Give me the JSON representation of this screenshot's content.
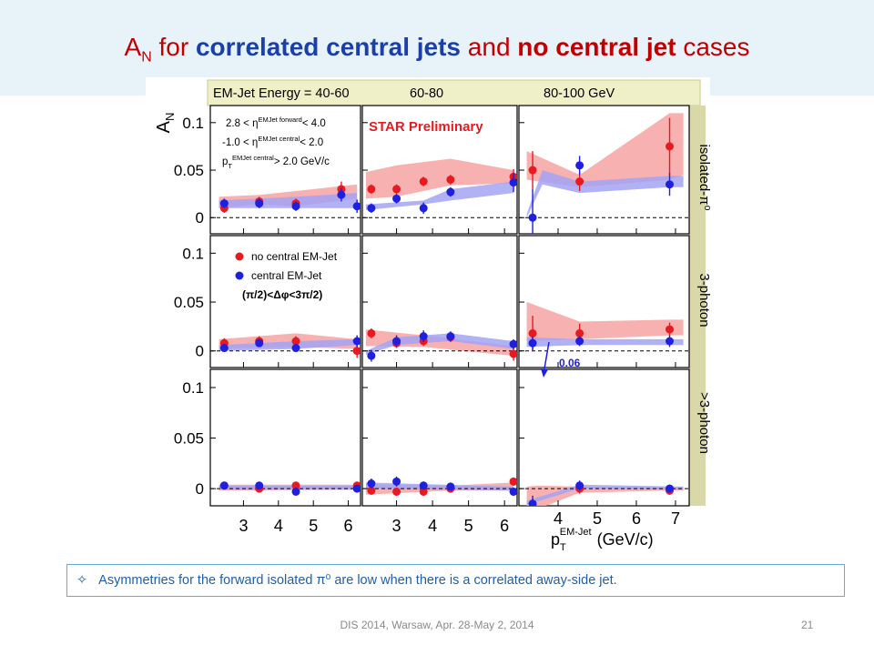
{
  "slide": {
    "title_prefix": "A",
    "title_sub": "N",
    "title_for": " for ",
    "title_correlated": "correlated central jets",
    "title_and": " and ",
    "title_no_central": "no central jet",
    "title_cases": " cases",
    "note_icon": "diamond-outline-icon",
    "note_text": "Asymmetries for the forward isolated π⁰ are low when there is a correlated away-side jet.",
    "footer": "DIS 2014, Warsaw, Apr. 28-May 2, 2014",
    "page_number": "21"
  },
  "chart_data": {
    "type": "scatter",
    "header_labels": [
      "EM-Jet Energy = 40-60",
      "60-80",
      "80-100 GeV"
    ],
    "row_labels": [
      "isolated-π⁰",
      "3-photon",
      ">3-photon"
    ],
    "y_label": "A",
    "y_label_sub": "N",
    "y_ticks": [
      0,
      0.05,
      0.1
    ],
    "y_tick_labels": [
      "0",
      "0.05",
      "0.1"
    ],
    "ylim": [
      -0.017,
      0.118
    ],
    "x_ticks_by_column": [
      [
        3,
        4,
        5,
        6
      ],
      [
        3,
        4,
        5,
        6
      ],
      [
        4,
        5,
        6,
        7
      ]
    ],
    "xlims_by_column": [
      [
        2.05,
        6.35
      ],
      [
        2.05,
        6.35
      ],
      [
        3.0,
        7.35
      ]
    ],
    "x_label": "p",
    "x_label_sub": "T",
    "x_label_sup": "EM-Jet",
    "x_label_unit": "(GeV/c)",
    "preliminary_label": "STAR Preliminary",
    "cuts": {
      "line1_left": "2.8 < η",
      "line1_sup": "EMJet forward",
      "line1_right": "< 4.0",
      "line2_left": "-1.0 < η",
      "line2_sup": "EMJet central",
      "line2_right": "< 2.0",
      "line3_left": "p",
      "line3_sub": "T",
      "line3_sup": "EMJet central",
      "line3_right": "> 2.0 GeV/c"
    },
    "legend_no_central": "no central EM-Jet",
    "legend_central": "central EM-Jet",
    "legend_central_cut": "(π/2)<Δφ<3π/2)",
    "arrow_annotation": "0.06",
    "colors": {
      "no_central": "#e8191f",
      "central": "#1f1fe0",
      "no_central_band": "#f7a3a3",
      "central_band": "#a3a3f5",
      "header_bg": "#f0f0c8",
      "side_bg": "#d8d8a8"
    },
    "series": [
      {
        "name": "no central EM-Jet",
        "panels": [
          {
            "row": 0,
            "col": 0,
            "x": [
              2.45,
              3.45,
              4.5,
              5.8
            ],
            "y": [
              0.01,
              0.017,
              0.015,
              0.03
            ],
            "err": [
              0.005,
              0.005,
              0.005,
              0.008
            ]
          },
          {
            "row": 0,
            "col": 1,
            "x": [
              2.3,
              3.0,
              3.75,
              4.5,
              6.25
            ],
            "y": [
              0.03,
              0.03,
              0.038,
              0.04,
              0.043
            ],
            "err": [
              0.005,
              0.005,
              0.005,
              0.005,
              0.008
            ]
          },
          {
            "row": 0,
            "col": 2,
            "x": [
              3.35,
              4.55,
              6.85
            ],
            "y": [
              0.05,
              0.038,
              0.075
            ],
            "err": [
              0.02,
              0.01,
              0.03
            ]
          },
          {
            "row": 1,
            "col": 0,
            "x": [
              2.45,
              3.45,
              4.5,
              6.25
            ],
            "y": [
              0.008,
              0.01,
              0.01,
              0.0
            ],
            "err": [
              0.005,
              0.005,
              0.005,
              0.007
            ]
          },
          {
            "row": 1,
            "col": 1,
            "x": [
              2.3,
              3.0,
              3.75,
              4.5,
              6.25
            ],
            "y": [
              0.018,
              0.008,
              0.01,
              0.014,
              -0.003
            ],
            "err": [
              0.005,
              0.005,
              0.005,
              0.005,
              0.007
            ]
          },
          {
            "row": 1,
            "col": 2,
            "x": [
              3.35,
              4.55,
              6.85
            ],
            "y": [
              0.018,
              0.018,
              0.022
            ],
            "err": [
              0.018,
              0.01,
              0.007
            ]
          },
          {
            "row": 2,
            "col": 0,
            "x": [
              2.45,
              3.45,
              4.5,
              6.25
            ],
            "y": [
              0.003,
              0.0,
              0.003,
              0.003
            ],
            "err": [
              0.003,
              0.003,
              0.003,
              0.003
            ]
          },
          {
            "row": 2,
            "col": 1,
            "x": [
              2.3,
              3.0,
              3.75,
              4.5,
              6.25
            ],
            "y": [
              -0.002,
              -0.003,
              -0.003,
              0.0,
              0.007
            ],
            "err": [
              0.004,
              0.004,
              0.004,
              0.004,
              0.004
            ]
          },
          {
            "row": 2,
            "col": 2,
            "x": [
              3.35,
              4.55,
              6.85
            ],
            "y": [
              -0.02,
              0.0,
              -0.002
            ],
            "err": [
              0.01,
              0.005,
              0.004
            ]
          }
        ]
      },
      {
        "name": "central EM-Jet",
        "panels": [
          {
            "row": 0,
            "col": 0,
            "x": [
              2.45,
              3.45,
              4.5,
              5.8,
              6.25
            ],
            "y": [
              0.015,
              0.015,
              0.012,
              0.024,
              0.012
            ],
            "err": [
              0.005,
              0.005,
              0.005,
              0.007,
              0.007
            ]
          },
          {
            "row": 0,
            "col": 1,
            "x": [
              2.3,
              3.0,
              3.75,
              4.5,
              6.25
            ],
            "y": [
              0.01,
              0.02,
              0.01,
              0.027,
              0.037
            ],
            "err": [
              0.005,
              0.005,
              0.006,
              0.005,
              0.01
            ]
          },
          {
            "row": 0,
            "col": 2,
            "x": [
              3.35,
              4.55,
              6.85
            ],
            "y": [
              0.0,
              0.055,
              0.035
            ],
            "err": [
              0.03,
              0.01,
              0.012
            ]
          },
          {
            "row": 1,
            "col": 0,
            "x": [
              2.45,
              3.45,
              4.5,
              6.25
            ],
            "y": [
              0.003,
              0.008,
              0.003,
              0.01
            ],
            "err": [
              0.004,
              0.004,
              0.004,
              0.006
            ]
          },
          {
            "row": 1,
            "col": 1,
            "x": [
              2.3,
              3.0,
              3.75,
              4.5,
              6.25
            ],
            "y": [
              -0.005,
              0.01,
              0.015,
              0.015,
              0.007
            ],
            "err": [
              0.006,
              0.006,
              0.006,
              0.005,
              0.005
            ]
          },
          {
            "row": 1,
            "col": 2,
            "x": [
              3.35,
              4.55,
              6.85
            ],
            "y": [
              0.008,
              0.01,
              0.01
            ],
            "err": [
              0.007,
              0.005,
              0.006
            ]
          },
          {
            "row": 2,
            "col": 0,
            "x": [
              2.45,
              3.45,
              4.5,
              6.25
            ],
            "y": [
              0.003,
              0.003,
              -0.003,
              0.0
            ],
            "err": [
              0.003,
              0.003,
              0.003,
              0.003
            ]
          },
          {
            "row": 2,
            "col": 1,
            "x": [
              2.3,
              3.0,
              3.75,
              4.5,
              6.25
            ],
            "y": [
              0.005,
              0.007,
              0.003,
              0.002,
              -0.003
            ],
            "err": [
              0.005,
              0.005,
              0.004,
              0.004,
              0.004
            ]
          },
          {
            "row": 2,
            "col": 2,
            "x": [
              3.35,
              4.55,
              6.85
            ],
            "y": [
              -0.015,
              0.003,
              0.0
            ],
            "err": [
              0.008,
              0.005,
              0.004
            ]
          }
        ]
      }
    ],
    "bands": [
      {
        "series": "no central EM-Jet",
        "panels": [
          {
            "row": 0,
            "col": 0,
            "x": [
              2.3,
              3.45,
              4.5,
              6.25
            ],
            "lo": [
              0.01,
              0.014,
              0.012,
              0.02
            ],
            "hi": [
              0.022,
              0.024,
              0.028,
              0.035
            ]
          },
          {
            "row": 0,
            "col": 1,
            "x": [
              2.15,
              3.0,
              4.5,
              6.25
            ],
            "lo": [
              0.02,
              0.022,
              0.034,
              0.036
            ],
            "hi": [
              0.048,
              0.055,
              0.062,
              0.05
            ]
          },
          {
            "row": 0,
            "col": 2,
            "x": [
              3.2,
              4.55,
              6.85,
              7.2
            ],
            "lo": [
              0.04,
              0.032,
              0.04,
              0.045
            ],
            "hi": [
              0.07,
              0.045,
              0.11,
              0.11
            ]
          },
          {
            "row": 1,
            "col": 0,
            "x": [
              2.3,
              4.5,
              6.25
            ],
            "lo": [
              0.002,
              0.004,
              0.002
            ],
            "hi": [
              0.012,
              0.018,
              0.012
            ]
          },
          {
            "row": 1,
            "col": 1,
            "x": [
              2.15,
              3.75,
              6.25
            ],
            "lo": [
              0.005,
              0.004,
              -0.005
            ],
            "hi": [
              0.022,
              0.016,
              0.005
            ]
          },
          {
            "row": 1,
            "col": 2,
            "x": [
              3.2,
              4.55,
              6.85,
              7.2
            ],
            "lo": [
              0.01,
              0.012,
              0.016,
              0.016
            ],
            "hi": [
              0.05,
              0.03,
              0.032,
              0.032
            ]
          },
          {
            "row": 2,
            "col": 0,
            "x": [
              2.3,
              6.25
            ],
            "lo": [
              -0.002,
              -0.001
            ],
            "hi": [
              0.004,
              0.004
            ]
          },
          {
            "row": 2,
            "col": 1,
            "x": [
              2.15,
              4.5,
              6.25
            ],
            "lo": [
              -0.006,
              -0.002,
              -0.002
            ],
            "hi": [
              0.004,
              0.003,
              0.006
            ]
          },
          {
            "row": 2,
            "col": 2,
            "x": [
              3.2,
              3.5,
              4.55,
              6.85,
              7.2
            ],
            "lo": [
              -0.02,
              -0.02,
              -0.004,
              -0.002,
              -0.002
            ],
            "hi": [
              0.002,
              0.003,
              0.002,
              0.001,
              0.001
            ]
          }
        ]
      },
      {
        "series": "central EM-Jet",
        "panels": [
          {
            "row": 0,
            "col": 0,
            "x": [
              2.3,
              4.5,
              6.25
            ],
            "lo": [
              0.01,
              0.01,
              0.01
            ],
            "hi": [
              0.018,
              0.022,
              0.026
            ]
          },
          {
            "row": 0,
            "col": 1,
            "x": [
              2.15,
              3.75,
              4.5,
              6.25
            ],
            "lo": [
              0.008,
              0.014,
              0.018,
              0.026
            ],
            "hi": [
              0.014,
              0.018,
              0.03,
              0.038
            ]
          },
          {
            "row": 0,
            "col": 2,
            "x": [
              3.2,
              3.6,
              4.55,
              6.85,
              7.2
            ],
            "lo": [
              0.0,
              0.035,
              0.026,
              0.032,
              0.032
            ],
            "hi": [
              0.004,
              0.05,
              0.038,
              0.044,
              0.044
            ]
          },
          {
            "row": 1,
            "col": 0,
            "x": [
              2.3,
              4.5,
              6.25
            ],
            "lo": [
              0.0,
              0.002,
              0.006
            ],
            "hi": [
              0.006,
              0.01,
              0.012
            ]
          },
          {
            "row": 1,
            "col": 1,
            "x": [
              2.15,
              3.0,
              4.5,
              6.25
            ],
            "lo": [
              -0.004,
              0.006,
              0.01,
              0.002
            ],
            "hi": [
              0.0,
              0.014,
              0.018,
              0.01
            ]
          },
          {
            "row": 1,
            "col": 2,
            "x": [
              3.2,
              4.55,
              6.85,
              7.2
            ],
            "lo": [
              0.004,
              0.006,
              0.006,
              0.006
            ],
            "hi": [
              0.014,
              0.012,
              0.012,
              0.012
            ]
          },
          {
            "row": 2,
            "col": 0,
            "x": [
              2.3,
              6.25
            ],
            "lo": [
              -0.001,
              -0.001
            ],
            "hi": [
              0.003,
              0.003
            ]
          },
          {
            "row": 2,
            "col": 1,
            "x": [
              2.15,
              6.25
            ],
            "lo": [
              0.0,
              -0.002
            ],
            "hi": [
              0.006,
              0.002
            ]
          },
          {
            "row": 2,
            "col": 2,
            "x": [
              3.2,
              4.55,
              7.2
            ],
            "lo": [
              -0.016,
              0.0,
              -0.001
            ],
            "hi": [
              -0.012,
              0.004,
              0.002
            ]
          }
        ]
      }
    ]
  }
}
